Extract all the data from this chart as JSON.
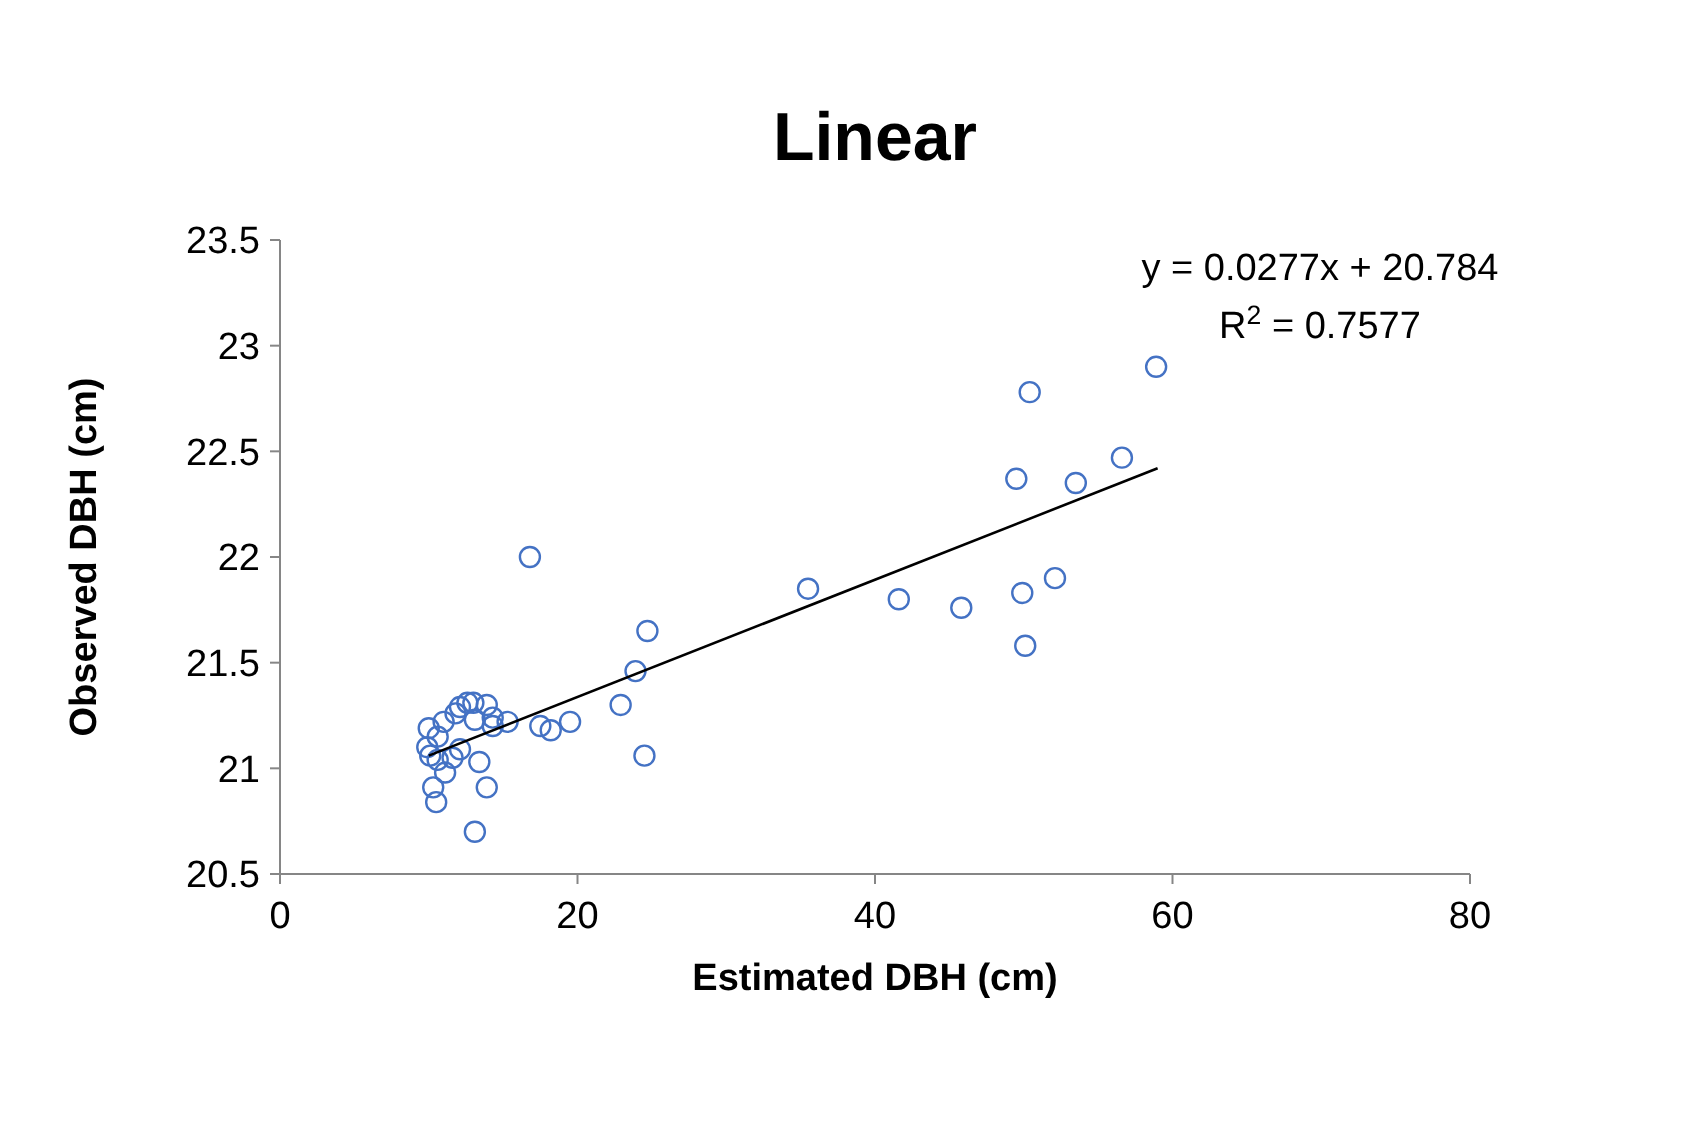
{
  "chart_data": {
    "type": "scatter",
    "title": "Linear",
    "xlabel": "Estimated DBH (cm)",
    "ylabel": "Observed DBH (cm)",
    "xlim": [
      0,
      80
    ],
    "xticks": [
      0,
      20,
      40,
      60,
      80
    ],
    "ylim": [
      20.5,
      23.5
    ],
    "yticks": [
      20.5,
      21,
      21.5,
      22,
      22.5,
      23,
      23.5
    ],
    "grid": false,
    "marker": "circle",
    "series": [
      {
        "color": "#4472c4",
        "x": [
          16.8,
          24.7,
          23.9,
          22.9,
          19.5,
          18.2,
          17.5,
          24.5,
          15.3,
          14.3,
          14.3,
          13.9,
          13.0,
          12.6,
          12.1,
          11.8,
          13.1,
          11.0,
          10.0,
          9.9,
          10.1,
          10.6,
          10.6,
          11.1,
          11.6,
          12.1,
          13.4,
          10.3,
          10.5,
          13.9,
          13.1,
          35.5,
          41.6,
          45.8,
          49.9,
          52.1,
          50.1,
          49.5,
          53.5,
          56.6,
          50.4,
          58.9
        ],
        "values": [
          22.0,
          21.65,
          21.46,
          21.3,
          21.22,
          21.18,
          21.2,
          21.06,
          21.22,
          21.2,
          21.24,
          21.3,
          21.31,
          21.31,
          21.29,
          21.26,
          21.23,
          21.22,
          21.19,
          21.1,
          21.06,
          21.15,
          21.04,
          20.98,
          21.05,
          21.09,
          21.03,
          20.91,
          20.84,
          20.91,
          20.7,
          21.85,
          21.8,
          21.76,
          21.83,
          21.9,
          21.58,
          22.37,
          22.35,
          22.47,
          22.78,
          22.9
        ]
      },
      {
        "type": "line",
        "color": "#000000",
        "marker": "none",
        "x": [
          10,
          59
        ],
        "values": [
          21.06,
          22.42
        ]
      }
    ],
    "annotations": [
      "y = 0.0277x + 20.784",
      "R$^{2}$ = 0.7577"
    ]
  }
}
